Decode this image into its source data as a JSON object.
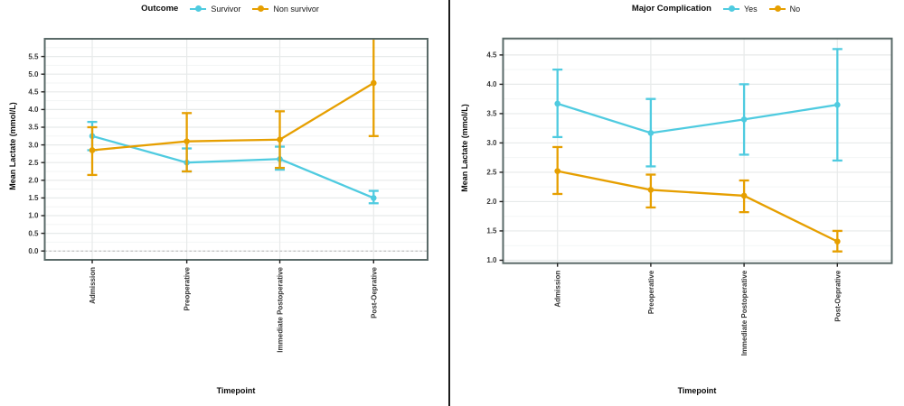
{
  "colors": {
    "cyan": "#4fcbe0",
    "orange": "#e69f00",
    "grid_major": "#e7eaea",
    "grid_minor": "#f3f5f5",
    "panel_border": "#5a6a68",
    "tick_text": "#3a3a3a",
    "axis_title": "#0a0a0a",
    "zero_line": "#b5b5b5"
  },
  "chart_data": [
    {
      "type": "line",
      "legend": {
        "title": "Outcome",
        "position": "top",
        "items": [
          {
            "label": "Survivor",
            "color": "#4fcbe0"
          },
          {
            "label": "Non survivor",
            "color": "#e69f00"
          }
        ]
      },
      "xlabel": "Timepoint",
      "ylabel": "Mean Lactate (mmol/L)",
      "categories": [
        "Admission",
        "Preoperative",
        "Immediate Postoperative",
        "Post-Oeprative"
      ],
      "y_tick_labels": [
        "0.0",
        "0.5",
        "1.0",
        "1.5",
        "2.0",
        "2.5",
        "3.0",
        "3.5",
        "4.0",
        "4.5",
        "5.0",
        "5.5"
      ],
      "y_ticks": [
        0.0,
        0.5,
        1.0,
        1.5,
        2.0,
        2.5,
        3.0,
        3.5,
        4.0,
        4.5,
        5.0,
        5.5
      ],
      "ylim": [
        -0.25,
        6.0
      ],
      "grid": true,
      "zero_dashed_line": true,
      "error_bars": true,
      "series": [
        {
          "name": "Survivor",
          "color": "#4fcbe0",
          "values": [
            3.25,
            2.5,
            2.6,
            1.5
          ],
          "lo": [
            2.85,
            2.25,
            2.3,
            1.35
          ],
          "hi": [
            3.65,
            2.9,
            2.95,
            1.7
          ]
        },
        {
          "name": "Non survivor",
          "color": "#e69f00",
          "values": [
            2.85,
            3.1,
            3.15,
            4.75
          ],
          "lo": [
            2.15,
            2.25,
            2.35,
            3.25
          ],
          "hi": [
            3.5,
            3.9,
            3.95,
            6.2
          ]
        }
      ]
    },
    {
      "type": "line",
      "legend": {
        "title": "Major Complication",
        "position": "top",
        "items": [
          {
            "label": "Yes",
            "color": "#4fcbe0"
          },
          {
            "label": "No",
            "color": "#e69f00"
          }
        ]
      },
      "xlabel": "Timepoint",
      "ylabel": "Mean Lactate (mmol/L)",
      "categories": [
        "Admission",
        "Preoperative",
        "Immediate Postoperative",
        "Post-Oeprative"
      ],
      "y_tick_labels": [
        "1.0",
        "1.5",
        "2.0",
        "2.5",
        "3.0",
        "3.5",
        "4.0",
        "4.5"
      ],
      "y_ticks": [
        1.0,
        1.5,
        2.0,
        2.5,
        3.0,
        3.5,
        4.0,
        4.5
      ],
      "ylim": [
        0.95,
        4.78
      ],
      "grid": true,
      "zero_dashed_line": false,
      "error_bars": true,
      "series": [
        {
          "name": "Yes",
          "color": "#4fcbe0",
          "values": [
            3.67,
            3.17,
            3.4,
            3.65
          ],
          "lo": [
            3.1,
            2.6,
            2.8,
            2.7
          ],
          "hi": [
            4.25,
            3.75,
            4.0,
            4.6
          ]
        },
        {
          "name": "No",
          "color": "#e69f00",
          "values": [
            2.52,
            2.2,
            2.1,
            1.32
          ],
          "lo": [
            2.13,
            1.9,
            1.82,
            1.15
          ],
          "hi": [
            2.93,
            2.46,
            2.36,
            1.5
          ]
        }
      ]
    }
  ]
}
